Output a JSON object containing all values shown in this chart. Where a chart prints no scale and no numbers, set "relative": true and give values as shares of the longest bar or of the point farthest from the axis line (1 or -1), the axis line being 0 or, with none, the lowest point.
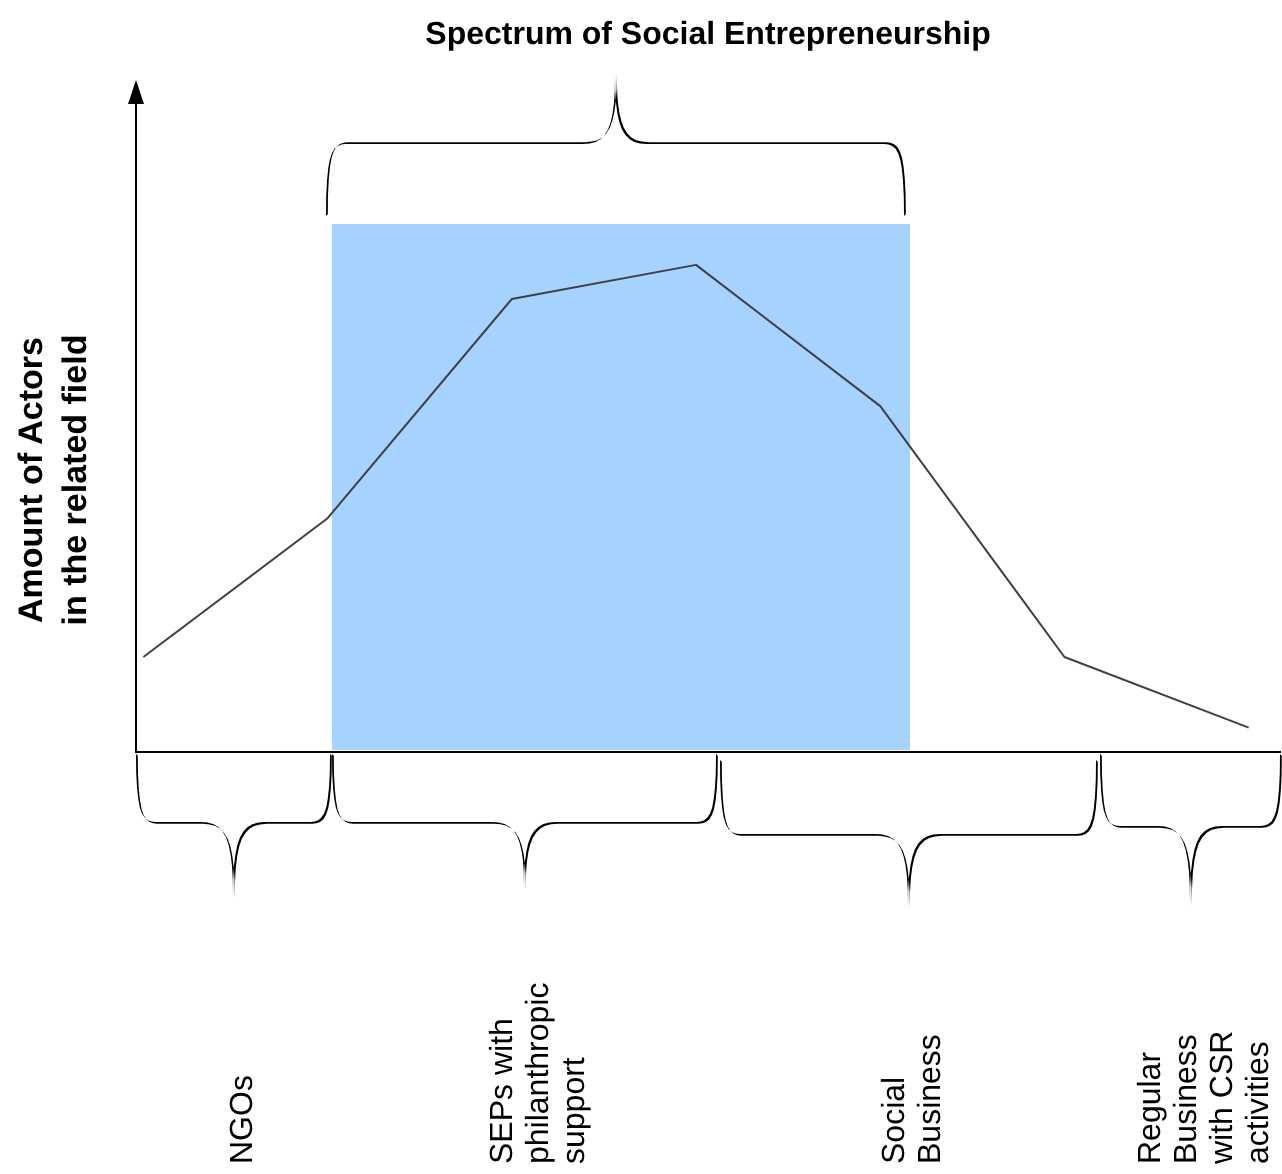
{
  "chart_data": {
    "type": "line",
    "title": "Spectrum of Social Entrepreneurship",
    "ylabel": "Amount of Actors in the related field",
    "relative": true,
    "categories": [
      null,
      null,
      null,
      null,
      null,
      null,
      null
    ],
    "series": [
      {
        "color": "#404040",
        "values": [
          0.195,
          0.48,
          0.93,
          1,
          0.71,
          0.195,
          0.05
        ]
      }
    ],
    "annotations": [
      "NGOs",
      "SEPs with philanthropic support",
      "Social Business",
      "Regular Business with CSR activities"
    ],
    "grid": false,
    "legend": false
  }
}
